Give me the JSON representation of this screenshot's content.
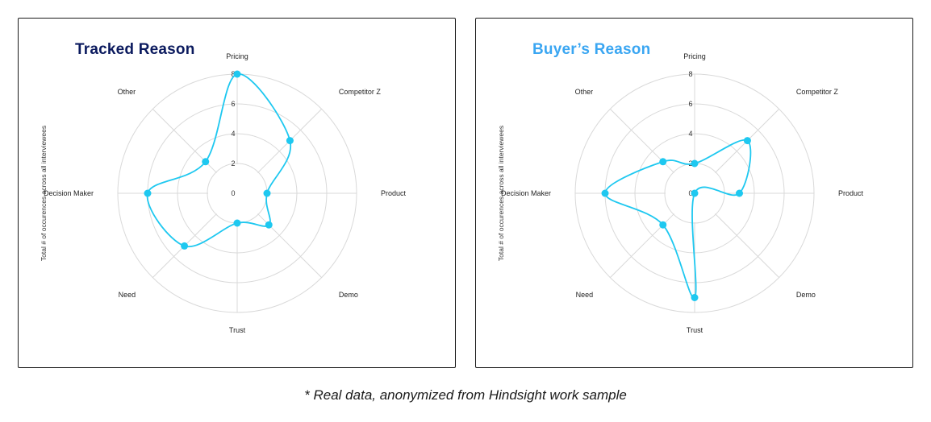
{
  "footnote": "* Real data, anonymized from Hindsight work sample",
  "colors": {
    "series": "#1ec8f0",
    "grid": "#d9d9d9",
    "left_title": "#0b1a5e",
    "right_title": "#3aa6f2"
  },
  "chart_data": [
    {
      "type": "radar",
      "title": "Tracked Reason",
      "ylabel": "Total # of occurences across all interviewees",
      "categories": [
        "Pricing",
        "Competitor Z",
        "Product",
        "Demo",
        "Trust",
        "Need",
        "Decision Maker",
        "Other"
      ],
      "radial_ticks": [
        "0",
        "2",
        "4",
        "6",
        "8"
      ],
      "rlim": [
        0,
        8
      ],
      "grid": true,
      "series": [
        {
          "values": [
            8,
            5,
            2,
            3,
            2,
            5,
            6,
            3
          ]
        }
      ]
    },
    {
      "type": "radar",
      "title": "Buyer’s Reason",
      "ylabel": "Total # of occurences across all interviewees",
      "categories": [
        "Pricing",
        "Competitor Z",
        "Product",
        "Demo",
        "Trust",
        "Need",
        "Decision Maker",
        "Other"
      ],
      "radial_ticks": [
        "0",
        "2",
        "4",
        "6",
        "8"
      ],
      "rlim": [
        0,
        8
      ],
      "grid": true,
      "series": [
        {
          "values": [
            2,
            5,
            3,
            0,
            7,
            3,
            6,
            3
          ]
        }
      ]
    }
  ]
}
